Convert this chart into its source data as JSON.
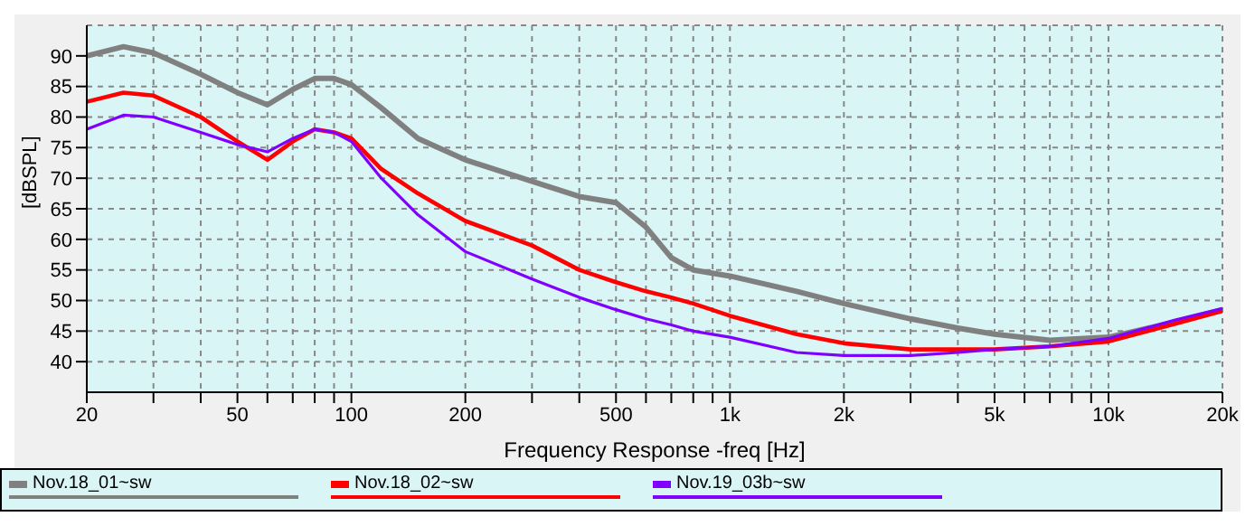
{
  "chart_data": {
    "type": "line",
    "xlabel": "Frequency Response -freq [Hz]",
    "ylabel": "[dBSPL]",
    "log": "x",
    "grid": true,
    "legend": "bottom",
    "marker": "none",
    "line_style": "solid",
    "x": [
      20,
      25,
      30,
      40,
      50,
      60,
      70,
      80,
      90,
      100,
      120,
      150,
      200,
      300,
      400,
      500,
      600,
      700,
      800,
      1000,
      1500,
      2000,
      3000,
      4000,
      5000,
      7000,
      10000,
      15000,
      20000
    ],
    "xlim": [
      20,
      20000
    ],
    "xticks": [
      20,
      {
        "value": 30,
        "label": null
      },
      {
        "value": 40,
        "label": null
      },
      50,
      {
        "value": 60,
        "label": null
      },
      {
        "value": 70,
        "label": null
      },
      {
        "value": 80,
        "label": null
      },
      {
        "value": 90,
        "label": null
      },
      100,
      200,
      {
        "value": 300,
        "label": null
      },
      {
        "value": 400,
        "label": null
      },
      500,
      {
        "value": 600,
        "label": null
      },
      {
        "value": 700,
        "label": null
      },
      {
        "value": 800,
        "label": null
      },
      {
        "value": 900,
        "label": null
      },
      {
        "value": 1000,
        "label": "1k"
      },
      {
        "value": 2000,
        "label": "2k"
      },
      {
        "value": 3000,
        "label": null
      },
      {
        "value": 4000,
        "label": null
      },
      {
        "value": 5000,
        "label": "5k"
      },
      {
        "value": 6000,
        "label": null
      },
      {
        "value": 7000,
        "label": null
      },
      {
        "value": 8000,
        "label": null
      },
      {
        "value": 9000,
        "label": null
      },
      {
        "value": 10000,
        "label": "10k"
      },
      {
        "value": 20000,
        "label": "20k"
      }
    ],
    "ylim": [
      35,
      95
    ],
    "yticks": [
      40,
      45,
      50,
      55,
      60,
      65,
      70,
      75,
      80,
      85,
      90
    ],
    "series": [
      {
        "name": "Nov.18_01~sw",
        "color": "#808080",
        "values": [
          90,
          91.5,
          90.5,
          87,
          84,
          82,
          84.5,
          86.3,
          86.3,
          85.3,
          81.5,
          76.5,
          73,
          69.5,
          67,
          66,
          62,
          57,
          55,
          54,
          51.5,
          49.5,
          47,
          45.5,
          44.5,
          43.5,
          44,
          46.5,
          48.5
        ]
      },
      {
        "name": "Nov.18_02~sw",
        "color": "#ff0000",
        "values": [
          82.5,
          84,
          83.5,
          80,
          76,
          73,
          76,
          78,
          77.5,
          76.5,
          71.5,
          67.5,
          63,
          59,
          55,
          53,
          51.5,
          50.5,
          49.5,
          47.5,
          44.5,
          43,
          42,
          42,
          42,
          42.5,
          43.3,
          46.2,
          48.3
        ]
      },
      {
        "name": "Nov.19_03b~sw",
        "color": "#8000ff",
        "values": [
          78,
          80.3,
          80,
          77.5,
          75.5,
          74.3,
          76.5,
          78,
          77.5,
          76,
          70,
          64,
          58,
          53.5,
          50.5,
          48.5,
          47,
          46,
          45,
          44,
          41.5,
          41,
          41,
          41.5,
          42,
          42.5,
          43.8,
          46.8,
          48.7
        ]
      }
    ]
  }
}
